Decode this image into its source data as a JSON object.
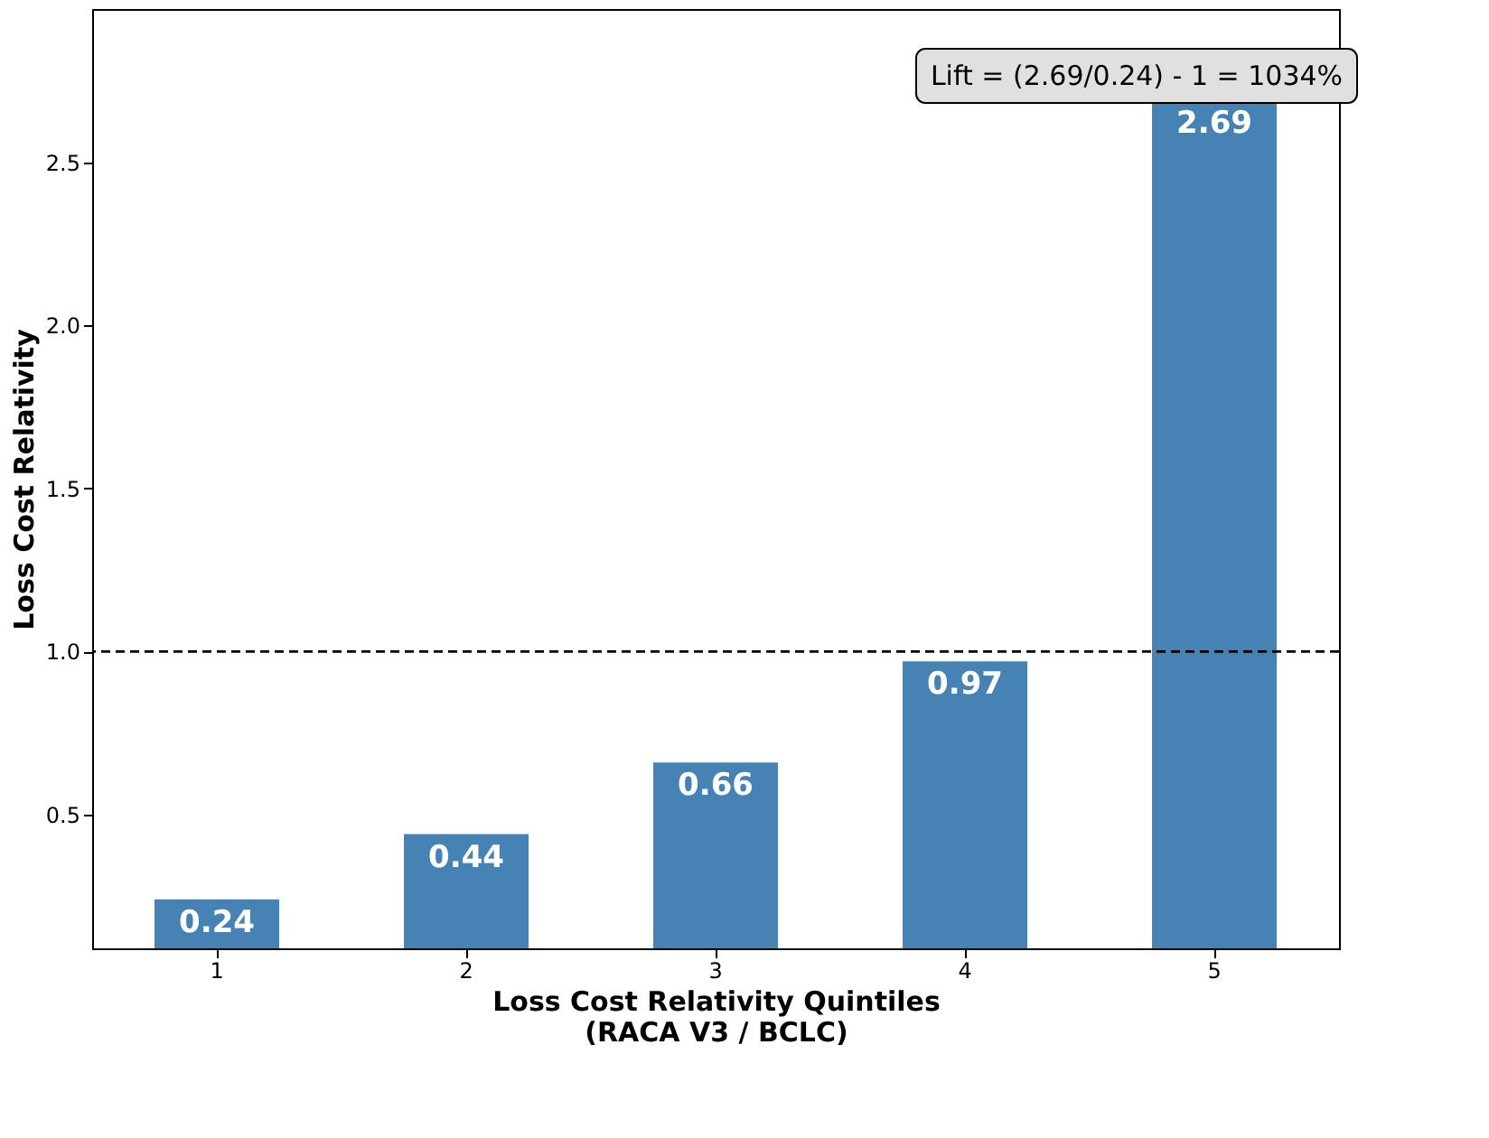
{
  "chart_data": {
    "type": "bar",
    "categories": [
      "1",
      "2",
      "3",
      "4",
      "5"
    ],
    "values": [
      0.24,
      0.44,
      0.66,
      0.97,
      2.69
    ],
    "color": "#4682b4",
    "xlabel": "Loss Cost Relativity Quintiles\n(RACA V3 / BCLC)",
    "ylabel": "Loss Cost Relativity",
    "ylim": [
      0.09,
      2.97
    ],
    "yticks": [
      0.5,
      {
        "value": 1,
        "label": "1.0"
      },
      1.5,
      {
        "value": 2,
        "label": "2.0"
      },
      2.5
    ],
    "data_labels": true,
    "grid": false,
    "ref_lines": [
      {
        "axis": "y",
        "value": 1.0,
        "color": "#000000",
        "line_style": "dashed"
      }
    ],
    "annotations": [
      "Lift = (2.69/0.24) - 1 = 1034%"
    ]
  }
}
